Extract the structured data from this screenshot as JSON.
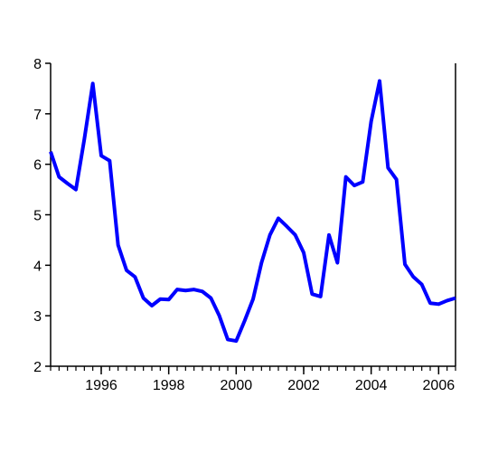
{
  "chart_data": {
    "type": "line",
    "x": [
      1994.5,
      1994.75,
      1995,
      1995.25,
      1995.5,
      1995.75,
      1996,
      1996.25,
      1996.5,
      1996.75,
      1997,
      1997.25,
      1997.5,
      1997.75,
      1998,
      1998.25,
      1998.5,
      1998.75,
      1999,
      1999.25,
      1999.5,
      1999.75,
      2000,
      2000.25,
      2000.5,
      2000.75,
      2001,
      2001.25,
      2001.5,
      2001.75,
      2002,
      2002.25,
      2002.5,
      2002.75,
      2003,
      2003.25,
      2003.5,
      2003.75,
      2004,
      2004.25,
      2004.5,
      2004.75,
      2005,
      2005.25,
      2005.5,
      2005.75,
      2006,
      2006.25,
      2006.5
    ],
    "series": [
      {
        "color": "#0000ff",
        "values": [
          6.25,
          5.75,
          5.62,
          5.5,
          6.5,
          7.6,
          6.17,
          6.07,
          4.4,
          3.9,
          3.77,
          3.35,
          3.2,
          3.33,
          3.32,
          3.52,
          3.5,
          3.52,
          3.48,
          3.35,
          3.0,
          2.53,
          2.5,
          2.9,
          3.33,
          4.05,
          4.6,
          4.93,
          4.77,
          4.6,
          4.25,
          3.43,
          3.38,
          4.6,
          4.05,
          5.75,
          5.58,
          5.65,
          6.85,
          7.65,
          5.93,
          5.7,
          4.02,
          3.77,
          3.62,
          3.25,
          3.23,
          3.3,
          3.35
        ]
      }
    ],
    "xlim": [
      1994.5,
      2006.5
    ],
    "xticks": [
      1996,
      1998,
      2000,
      2002,
      2004,
      2006
    ],
    "ylim": [
      2,
      8
    ],
    "yticks": [
      2,
      3,
      4,
      5,
      6,
      7,
      8
    ]
  }
}
